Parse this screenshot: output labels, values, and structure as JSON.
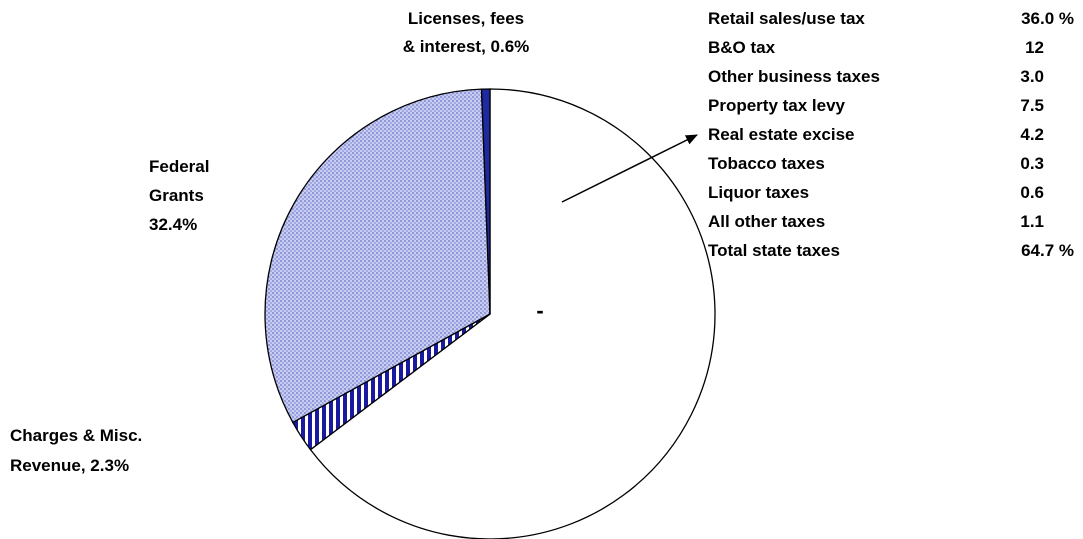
{
  "chart_data": {
    "type": "pie",
    "title": "",
    "slices": [
      {
        "name": "Total state taxes",
        "value": 64.7,
        "label": "",
        "fill": "#ffffff",
        "pattern": "none"
      },
      {
        "name": "Charges & Misc. Revenue",
        "value": 2.3,
        "label_lines": [
          "Charges & Misc.",
          "Revenue, 2.3%"
        ],
        "fill": "#1a1aa0",
        "pattern": "vertical-stripes"
      },
      {
        "name": "Federal Grants",
        "value": 32.4,
        "label_lines": [
          "Federal",
          "Grants",
          "32.4%"
        ],
        "fill": "#c8cdf2",
        "pattern": "dots"
      },
      {
        "name": "Licenses, fees & interest",
        "value": 0.6,
        "label_lines": [
          "Licenses, fees",
          "& interest, 0.6%"
        ],
        "fill": "#1e2aa0",
        "pattern": "solid-dark"
      }
    ],
    "breakdown_table": {
      "rows": [
        {
          "label": "Retail sales/use tax",
          "value": "36.0 %"
        },
        {
          "label": "B&O tax",
          "value": "12"
        },
        {
          "label": "Other business taxes",
          "value": "3.0"
        },
        {
          "label": "Property tax levy",
          "value": "7.5"
        },
        {
          "label": "Real estate excise",
          "value": "4.2"
        },
        {
          "label": "Tobacco taxes",
          "value": "0.3"
        },
        {
          "label": "Liquor taxes",
          "value": "0.6"
        },
        {
          "label": "All other taxes",
          "value": "1.1"
        },
        {
          "label": "Total state taxes",
          "value": "64.7 %"
        }
      ]
    },
    "center_mark": "-",
    "colors": {
      "outline": "#000000",
      "stripe": "#1a1aa0",
      "dot_bg": "#c8cdf2",
      "dot": "#6a72c8"
    }
  }
}
